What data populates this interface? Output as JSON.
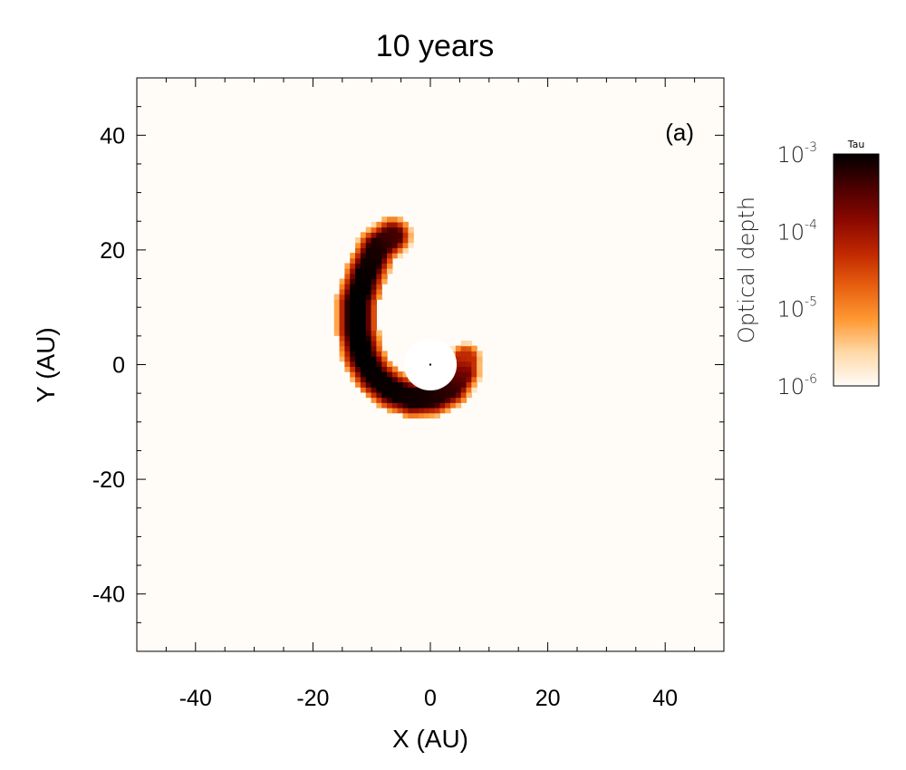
{
  "chart_data": {
    "type": "heatmap",
    "title": "10 years",
    "panel_label": "(a)",
    "xlabel": "X (AU)",
    "ylabel": "Y (AU)",
    "xlim": [
      -50,
      50
    ],
    "ylim": [
      -50,
      50
    ],
    "x_ticks": [
      -40,
      -20,
      0,
      20,
      40
    ],
    "y_ticks": [
      -40,
      -20,
      0,
      20,
      40
    ],
    "grid": false,
    "colorbar": {
      "title": "Tau",
      "label": "Optical depth",
      "scale": "log",
      "range": [
        1e-06,
        0.001
      ],
      "tick_bases": [
        "10",
        "10",
        "10",
        "10"
      ],
      "tick_exponents": [
        "-3",
        "-4",
        "-5",
        "-6"
      ],
      "tick_values": [
        0.001,
        0.0001,
        1e-05,
        1e-06
      ],
      "colormap": [
        "#fffcf8",
        "#ffd9a8",
        "#ff9933",
        "#e86010",
        "#c02800",
        "#8a0800",
        "#4a0000",
        "#000000"
      ]
    },
    "background_value": 1e-06,
    "central_hole": {
      "center": [
        0,
        0
      ],
      "radius": 4.5
    },
    "arc_centerline": [
      {
        "x": -6.5,
        "y": 22.5,
        "tau": 0.0004
      },
      {
        "x": -9,
        "y": 20.5,
        "tau": 0.0007
      },
      {
        "x": -11,
        "y": 16,
        "tau": 0.0009
      },
      {
        "x": -12.5,
        "y": 11,
        "tau": 0.001
      },
      {
        "x": -12.5,
        "y": 6,
        "tau": 0.001
      },
      {
        "x": -11.5,
        "y": 1.5,
        "tau": 0.001
      },
      {
        "x": -9.5,
        "y": -2,
        "tau": 0.0009
      },
      {
        "x": -6.5,
        "y": -4.5,
        "tau": 0.0009
      },
      {
        "x": -3,
        "y": -5.8,
        "tau": 0.0008
      },
      {
        "x": 0.5,
        "y": -5.5,
        "tau": 0.0007
      },
      {
        "x": 3.5,
        "y": -4,
        "tau": 0.0005
      },
      {
        "x": 5.5,
        "y": -1.2,
        "tau": 0.0002
      },
      {
        "x": 6,
        "y": 1.2,
        "tau": 5e-05
      }
    ],
    "arc_half_width": 2.6
  }
}
